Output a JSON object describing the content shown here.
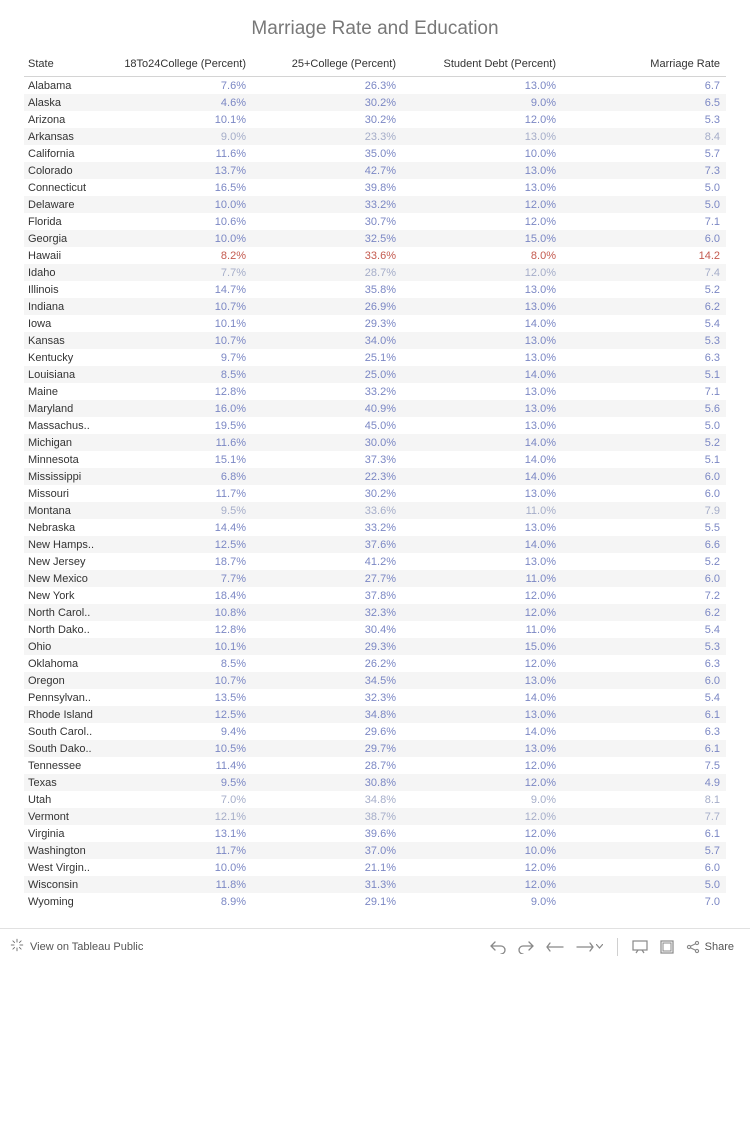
{
  "title": "Marriage Rate and Education",
  "columns": {
    "state": "State",
    "col1": "18To24College (Percent)",
    "col2": "25+College  (Percent)",
    "col3": "Student Debt (Percent)",
    "col4": "Marriage Rate"
  },
  "value_color_default": "#7b87c4",
  "value_color_highlight": "#c45a4f",
  "value_color_muted": "#a5adc9",
  "state_text_color": "#333333",
  "row_stripe_color": "#f5f5f5",
  "background_color": "#ffffff",
  "title_color": "#787878",
  "title_fontsize": 19,
  "cell_fontsize": 11,
  "rows": [
    {
      "state": "Alabama",
      "c1": "7.6%",
      "c2": "26.3%",
      "c3": "13.0%",
      "c4": "6.7"
    },
    {
      "state": "Alaska",
      "c1": "4.6%",
      "c2": "30.2%",
      "c3": "9.0%",
      "c4": "6.5"
    },
    {
      "state": "Arizona",
      "c1": "10.1%",
      "c2": "30.2%",
      "c3": "12.0%",
      "c4": "5.3"
    },
    {
      "state": "Arkansas",
      "c1": "9.0%",
      "c2": "23.3%",
      "c3": "13.0%",
      "c4": "8.4",
      "muted": true
    },
    {
      "state": "California",
      "c1": "11.6%",
      "c2": "35.0%",
      "c3": "10.0%",
      "c4": "5.7"
    },
    {
      "state": "Colorado",
      "c1": "13.7%",
      "c2": "42.7%",
      "c3": "13.0%",
      "c4": "7.3"
    },
    {
      "state": "Connecticut",
      "c1": "16.5%",
      "c2": "39.8%",
      "c3": "13.0%",
      "c4": "5.0"
    },
    {
      "state": "Delaware",
      "c1": "10.0%",
      "c2": "33.2%",
      "c3": "12.0%",
      "c4": "5.0"
    },
    {
      "state": "Florida",
      "c1": "10.6%",
      "c2": "30.7%",
      "c3": "12.0%",
      "c4": "7.1"
    },
    {
      "state": "Georgia",
      "c1": "10.0%",
      "c2": "32.5%",
      "c3": "15.0%",
      "c4": "6.0"
    },
    {
      "state": "Hawaii",
      "c1": "8.2%",
      "c2": "33.6%",
      "c3": "8.0%",
      "c4": "14.2",
      "highlight": true
    },
    {
      "state": "Idaho",
      "c1": "7.7%",
      "c2": "28.7%",
      "c3": "12.0%",
      "c4": "7.4",
      "muted": true
    },
    {
      "state": "Illinois",
      "c1": "14.7%",
      "c2": "35.8%",
      "c3": "13.0%",
      "c4": "5.2"
    },
    {
      "state": "Indiana",
      "c1": "10.7%",
      "c2": "26.9%",
      "c3": "13.0%",
      "c4": "6.2"
    },
    {
      "state": "Iowa",
      "c1": "10.1%",
      "c2": "29.3%",
      "c3": "14.0%",
      "c4": "5.4"
    },
    {
      "state": "Kansas",
      "c1": "10.7%",
      "c2": "34.0%",
      "c3": "13.0%",
      "c4": "5.3"
    },
    {
      "state": "Kentucky",
      "c1": "9.7%",
      "c2": "25.1%",
      "c3": "13.0%",
      "c4": "6.3"
    },
    {
      "state": "Louisiana",
      "c1": "8.5%",
      "c2": "25.0%",
      "c3": "14.0%",
      "c4": "5.1"
    },
    {
      "state": "Maine",
      "c1": "12.8%",
      "c2": "33.2%",
      "c3": "13.0%",
      "c4": "7.1"
    },
    {
      "state": "Maryland",
      "c1": "16.0%",
      "c2": "40.9%",
      "c3": "13.0%",
      "c4": "5.6"
    },
    {
      "state": "Massachus..",
      "c1": "19.5%",
      "c2": "45.0%",
      "c3": "13.0%",
      "c4": "5.0"
    },
    {
      "state": "Michigan",
      "c1": "11.6%",
      "c2": "30.0%",
      "c3": "14.0%",
      "c4": "5.2"
    },
    {
      "state": "Minnesota",
      "c1": "15.1%",
      "c2": "37.3%",
      "c3": "14.0%",
      "c4": "5.1"
    },
    {
      "state": "Mississippi",
      "c1": "6.8%",
      "c2": "22.3%",
      "c3": "14.0%",
      "c4": "6.0"
    },
    {
      "state": "Missouri",
      "c1": "11.7%",
      "c2": "30.2%",
      "c3": "13.0%",
      "c4": "6.0"
    },
    {
      "state": "Montana",
      "c1": "9.5%",
      "c2": "33.6%",
      "c3": "11.0%",
      "c4": "7.9",
      "muted": true
    },
    {
      "state": "Nebraska",
      "c1": "14.4%",
      "c2": "33.2%",
      "c3": "13.0%",
      "c4": "5.5"
    },
    {
      "state": "New Hamps..",
      "c1": "12.5%",
      "c2": "37.6%",
      "c3": "14.0%",
      "c4": "6.6"
    },
    {
      "state": "New Jersey",
      "c1": "18.7%",
      "c2": "41.2%",
      "c3": "13.0%",
      "c4": "5.2"
    },
    {
      "state": "New Mexico",
      "c1": "7.7%",
      "c2": "27.7%",
      "c3": "11.0%",
      "c4": "6.0"
    },
    {
      "state": "New York",
      "c1": "18.4%",
      "c2": "37.8%",
      "c3": "12.0%",
      "c4": "7.2"
    },
    {
      "state": "North Carol..",
      "c1": "10.8%",
      "c2": "32.3%",
      "c3": "12.0%",
      "c4": "6.2"
    },
    {
      "state": "North Dako..",
      "c1": "12.8%",
      "c2": "30.4%",
      "c3": "11.0%",
      "c4": "5.4"
    },
    {
      "state": "Ohio",
      "c1": "10.1%",
      "c2": "29.3%",
      "c3": "15.0%",
      "c4": "5.3"
    },
    {
      "state": "Oklahoma",
      "c1": "8.5%",
      "c2": "26.2%",
      "c3": "12.0%",
      "c4": "6.3"
    },
    {
      "state": "Oregon",
      "c1": "10.7%",
      "c2": "34.5%",
      "c3": "13.0%",
      "c4": "6.0"
    },
    {
      "state": "Pennsylvan..",
      "c1": "13.5%",
      "c2": "32.3%",
      "c3": "14.0%",
      "c4": "5.4"
    },
    {
      "state": "Rhode Island",
      "c1": "12.5%",
      "c2": "34.8%",
      "c3": "13.0%",
      "c4": "6.1"
    },
    {
      "state": "South Carol..",
      "c1": "9.4%",
      "c2": "29.6%",
      "c3": "14.0%",
      "c4": "6.3"
    },
    {
      "state": "South Dako..",
      "c1": "10.5%",
      "c2": "29.7%",
      "c3": "13.0%",
      "c4": "6.1"
    },
    {
      "state": "Tennessee",
      "c1": "11.4%",
      "c2": "28.7%",
      "c3": "12.0%",
      "c4": "7.5"
    },
    {
      "state": "Texas",
      "c1": "9.5%",
      "c2": "30.8%",
      "c3": "12.0%",
      "c4": "4.9"
    },
    {
      "state": "Utah",
      "c1": "7.0%",
      "c2": "34.8%",
      "c3": "9.0%",
      "c4": "8.1",
      "muted": true
    },
    {
      "state": "Vermont",
      "c1": "12.1%",
      "c2": "38.7%",
      "c3": "12.0%",
      "c4": "7.7",
      "muted": true
    },
    {
      "state": "Virginia",
      "c1": "13.1%",
      "c2": "39.6%",
      "c3": "12.0%",
      "c4": "6.1"
    },
    {
      "state": "Washington",
      "c1": "11.7%",
      "c2": "37.0%",
      "c3": "10.0%",
      "c4": "5.7"
    },
    {
      "state": "West Virgin..",
      "c1": "10.0%",
      "c2": "21.1%",
      "c3": "12.0%",
      "c4": "6.0"
    },
    {
      "state": "Wisconsin",
      "c1": "11.8%",
      "c2": "31.3%",
      "c3": "12.0%",
      "c4": "5.0"
    },
    {
      "state": "Wyoming",
      "c1": "8.9%",
      "c2": "29.1%",
      "c3": "9.0%",
      "c4": "7.0"
    }
  ],
  "toolbar": {
    "view_public": "View on Tableau Public",
    "share": "Share"
  }
}
